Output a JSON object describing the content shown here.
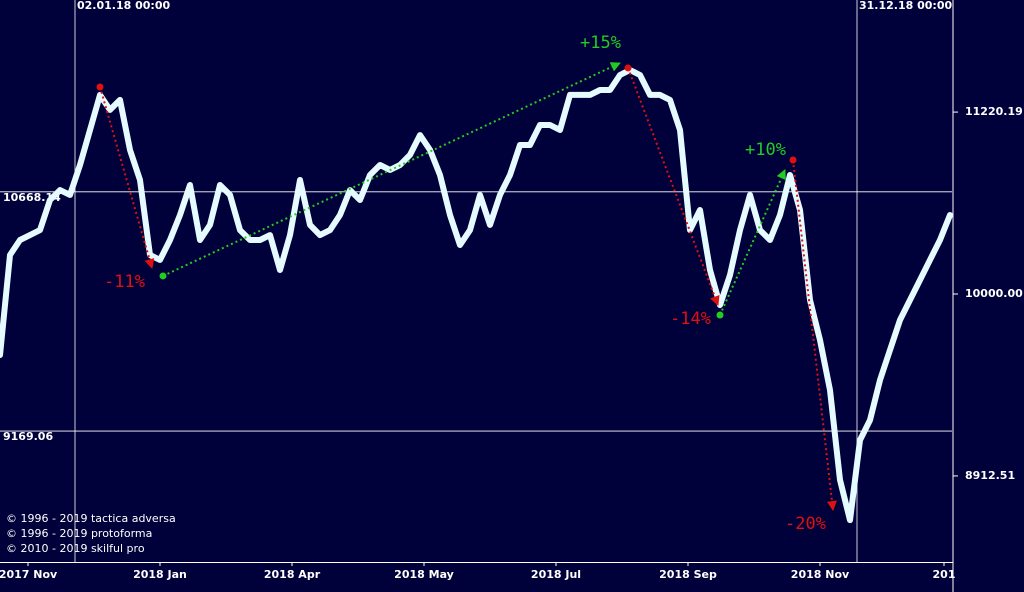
{
  "chart_data": {
    "type": "line",
    "log_y": true,
    "background": "#00003a",
    "x": [
      0,
      1,
      2,
      3,
      4,
      5,
      6,
      7,
      8,
      9,
      10,
      11,
      12,
      13,
      14,
      15,
      16,
      17,
      18,
      19,
      20,
      21,
      22,
      23,
      24,
      25,
      26,
      27,
      28,
      29,
      30,
      31,
      32,
      33,
      34,
      35,
      36,
      37,
      38,
      39,
      40,
      41,
      42,
      43,
      44,
      45,
      46,
      47,
      48,
      49,
      50,
      51,
      52,
      53,
      54,
      55,
      56,
      57,
      58,
      59,
      60,
      61,
      62,
      63,
      64,
      65,
      66,
      67,
      68,
      69,
      70,
      71,
      72,
      73,
      74,
      75,
      76,
      77,
      78,
      79,
      80,
      81,
      82,
      83,
      84,
      85,
      86,
      87,
      88,
      89,
      90,
      91,
      92,
      93,
      94,
      95
    ],
    "series": [
      {
        "color": "#e6fbff",
        "values": [
          9621,
          10250,
          10348,
          10380,
          10413,
          10613,
          10680,
          10647,
          10851,
          11094,
          11343,
          11236,
          11307,
          10955,
          10748,
          10250,
          10218,
          10348,
          10513,
          10714,
          10348,
          10447,
          10714,
          10647,
          10413,
          10348,
          10348,
          10380,
          10153,
          10380,
          10748,
          10447,
          10380,
          10413,
          10513,
          10680,
          10613,
          10782,
          10851,
          10817,
          10851,
          10920,
          11058,
          10955,
          10782,
          10513,
          10315,
          10413,
          10647,
          10447,
          10647,
          10782,
          10989,
          10989,
          11129,
          11129,
          11094,
          11343,
          11343,
          11343,
          11378,
          11378,
          11487,
          11523,
          11487,
          11343,
          11343,
          11307,
          11094,
          10413,
          10546,
          10153,
          9930,
          10121,
          10413,
          10647,
          10413,
          10348,
          10513,
          10782,
          10546,
          9962,
          9713,
          9410,
          8890,
          8667,
          9117,
          9233,
          9470,
          9652,
          9837,
          9962,
          10089,
          10218,
          10348,
          10513
        ]
      }
    ],
    "xlim": [
      0,
      95.2
    ],
    "ylim": [
      8440,
      12045
    ],
    "xticks": [
      {
        "value": 2.8,
        "label": "2017 Nov"
      },
      {
        "value": 16,
        "label": "2018 Jan"
      },
      {
        "value": 29.2,
        "label": "2018 Apr"
      },
      {
        "value": 42.4,
        "label": "2018 May"
      },
      {
        "value": 55.6,
        "label": "2018 Jul"
      },
      {
        "value": 68.8,
        "label": "2018 Sep"
      },
      {
        "value": 82,
        "label": "2018 Nov"
      },
      {
        "value": 94.4,
        "label": "201"
      }
    ],
    "yticks": [
      11220.19,
      {
        "value": 10000,
        "label": "10000.00"
      },
      8912.51
    ],
    "hlines": [
      10668.14,
      9169.06
    ],
    "vlines": [
      {
        "x": 7.5,
        "label": "02.01.18 00:00"
      },
      {
        "x": 85.7,
        "label": "31.12.18 00:00"
      }
    ],
    "annotations": [
      {
        "text": "-11%",
        "color": "#e01010",
        "from": [
          10,
          11400
        ],
        "to": [
          15.2,
          10166
        ]
      },
      {
        "text": "+15%",
        "color": "#22cc22",
        "from": [
          16.3,
          10115
        ],
        "to": [
          62,
          11574
        ]
      },
      {
        "text": "-14%",
        "color": "#e01010",
        "from": [
          62.8,
          11538
        ],
        "to": [
          71.8,
          9930
        ]
      },
      {
        "text": "+10%",
        "color": "#22cc22",
        "from": [
          72,
          9868
        ],
        "to": [
          78.5,
          10817
        ]
      },
      {
        "text": "-20%",
        "color": "#e01010",
        "from": [
          79.3,
          10885
        ],
        "to": [
          83.3,
          8722
        ]
      }
    ],
    "credits": [
      "© 1996 - 2019 tactica adversa",
      "© 1996 - 2019 protoforma",
      "© 2010 - 2019 skilful pro"
    ]
  }
}
